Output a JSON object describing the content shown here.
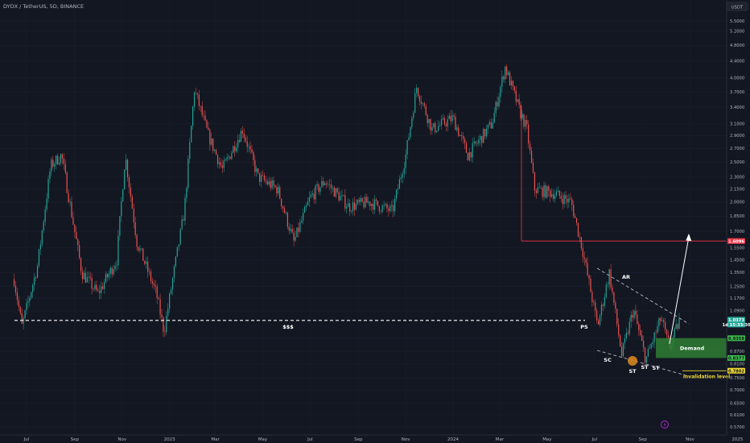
{
  "header": {
    "symbol_title": "DYDX / TetherUS, 5D, BINANCE",
    "currency": "USDT"
  },
  "colors": {
    "background": "#131722",
    "up": "#26a69a",
    "down": "#ef5350",
    "resistance": "#f23645",
    "demand": "#2e7d32",
    "invalidation": "#f0d832",
    "annotation": "#ffffff"
  },
  "chart_data": {
    "type": "candlestick",
    "title": "DYDX / TetherUS, 5D, BINANCE",
    "y_scale": "log",
    "ylim": [
      0.555,
      5.6
    ],
    "y_ticks": [
      "5.5000",
      "5.2000",
      "4.8000",
      "4.4000",
      "4.0000",
      "3.7000",
      "3.4000",
      "3.1000",
      "2.9000",
      "2.7000",
      "2.5000",
      "2.3000",
      "2.1500",
      "2.0000",
      "1.8500",
      "1.7000",
      "1.5500",
      "1.4500",
      "1.3500",
      "1.2500",
      "1.1700",
      "1.0900",
      "0.9350",
      "0.8700",
      "0.8100",
      "0.7500",
      "0.7000",
      "0.6500",
      "0.6100",
      "0.5700"
    ],
    "x_ticks": [
      "Jul",
      "Sep",
      "Nov",
      "2023",
      "Mar",
      "May",
      "Jul",
      "Sep",
      "Nov",
      "2024",
      "Mar",
      "May",
      "Jul",
      "Sep",
      "Nov",
      "2025"
    ],
    "price_path": [
      {
        "date": "2022-06-15",
        "price": 1.3
      },
      {
        "date": "2022-06-25",
        "price": 1.0
      },
      {
        "date": "2022-07-15",
        "price": 1.4
      },
      {
        "date": "2022-08-01",
        "price": 2.45
      },
      {
        "date": "2022-08-15",
        "price": 2.6
      },
      {
        "date": "2022-09-10",
        "price": 1.35
      },
      {
        "date": "2022-10-01",
        "price": 1.2
      },
      {
        "date": "2022-10-25",
        "price": 1.45
      },
      {
        "date": "2022-11-05",
        "price": 2.6
      },
      {
        "date": "2022-11-20",
        "price": 1.6
      },
      {
        "date": "2022-12-15",
        "price": 1.2
      },
      {
        "date": "2022-12-25",
        "price": 0.97
      },
      {
        "date": "2023-01-05",
        "price": 1.3
      },
      {
        "date": "2023-01-20",
        "price": 1.9
      },
      {
        "date": "2023-02-02",
        "price": 3.75
      },
      {
        "date": "2023-02-20",
        "price": 2.9
      },
      {
        "date": "2023-03-10",
        "price": 2.4
      },
      {
        "date": "2023-04-05",
        "price": 3.0
      },
      {
        "date": "2023-04-25",
        "price": 2.3
      },
      {
        "date": "2023-05-20",
        "price": 2.15
      },
      {
        "date": "2023-06-10",
        "price": 1.6
      },
      {
        "date": "2023-07-01",
        "price": 2.05
      },
      {
        "date": "2023-07-20",
        "price": 2.25
      },
      {
        "date": "2023-08-20",
        "price": 1.95
      },
      {
        "date": "2023-09-15",
        "price": 2.0
      },
      {
        "date": "2023-10-15",
        "price": 1.9
      },
      {
        "date": "2023-11-01",
        "price": 2.6
      },
      {
        "date": "2023-11-15",
        "price": 3.8
      },
      {
        "date": "2023-12-05",
        "price": 3.0
      },
      {
        "date": "2024-01-01",
        "price": 3.2
      },
      {
        "date": "2024-01-20",
        "price": 2.6
      },
      {
        "date": "2024-02-20",
        "price": 3.1
      },
      {
        "date": "2024-03-08",
        "price": 4.25
      },
      {
        "date": "2024-03-25",
        "price": 3.4
      },
      {
        "date": "2024-04-05",
        "price": 3.0
      },
      {
        "date": "2024-04-15",
        "price": 2.15
      },
      {
        "date": "2024-05-10",
        "price": 2.1
      },
      {
        "date": "2024-06-01",
        "price": 2.0
      },
      {
        "date": "2024-06-15",
        "price": 1.55
      },
      {
        "date": "2024-07-05",
        "price": 1.0
      },
      {
        "date": "2024-07-20",
        "price": 1.35
      },
      {
        "date": "2024-08-05",
        "price": 0.85
      },
      {
        "date": "2024-08-20",
        "price": 1.1
      },
      {
        "date": "2024-09-05",
        "price": 0.83
      },
      {
        "date": "2024-09-25",
        "price": 1.05
      },
      {
        "date": "2024-10-05",
        "price": 0.88
      },
      {
        "date": "2024-10-18",
        "price": 1.03
      }
    ],
    "levels": {
      "resistance": 1.6096,
      "liquidity_line": 1.0333,
      "demand_top": 0.9358,
      "demand_bottom": 0.8377,
      "invalidation": 0.7802
    },
    "price_labels": {
      "resistance": "1.6096",
      "last": "1.0373",
      "countdown": "1d 15:33:30",
      "demand_top": "0.9358",
      "demand_bottom": "0.8377",
      "invalidation": "0.7802"
    },
    "annotations": {
      "liquidity": "$$$",
      "ps": "PS",
      "sc": "SC",
      "ar": "AR",
      "st1": "ST",
      "st2": "ST",
      "st3": "ST",
      "demand": "Demand",
      "invalidation": "invalidation level"
    }
  }
}
